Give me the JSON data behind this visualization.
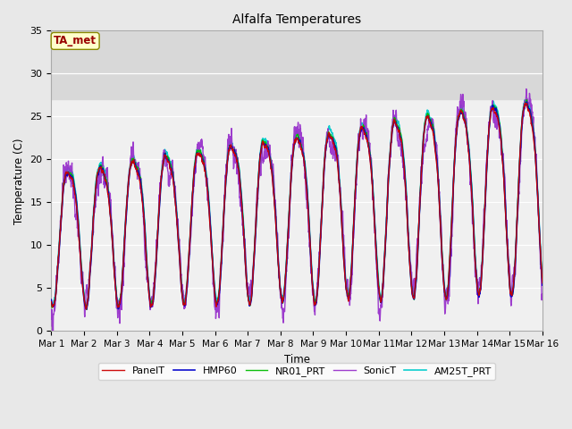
{
  "title": "Alfalfa Temperatures",
  "xlabel": "Time",
  "ylabel": "Temperature (C)",
  "ylim": [
    0,
    35
  ],
  "xlim": [
    0,
    15
  ],
  "xtick_labels": [
    "Mar 1",
    "Mar 2",
    "Mar 3",
    "Mar 4",
    "Mar 5",
    "Mar 6",
    "Mar 7",
    "Mar 8",
    "Mar 9",
    "Mar 10",
    "Mar 11",
    "Mar 12",
    "Mar 13",
    "Mar 14",
    "Mar 15",
    "Mar 16"
  ],
  "ytick_labels": [
    "0",
    "5",
    "10",
    "15",
    "20",
    "25",
    "30",
    "35"
  ],
  "ytick_vals": [
    0,
    5,
    10,
    15,
    20,
    25,
    30,
    35
  ],
  "fig_bg": "#e8e8e8",
  "plot_bg": "#f0f0f0",
  "shaded_band": [
    27.0,
    35.0
  ],
  "shaded_band_color": "#d8d8d8",
  "annotation_text": "TA_met",
  "annotation_color": "#990000",
  "annotation_bg": "#ffffcc",
  "annotation_border": "#888800",
  "series_colors": {
    "PanelT": "#cc0000",
    "HMP60": "#0000cc",
    "NR01_PRT": "#00bb00",
    "SonicT": "#9933cc",
    "AM25T_PRT": "#00cccc"
  },
  "line_widths": {
    "PanelT": 1.0,
    "HMP60": 1.2,
    "NR01_PRT": 1.0,
    "SonicT": 1.0,
    "AM25T_PRT": 1.2
  },
  "n_points": 2160
}
